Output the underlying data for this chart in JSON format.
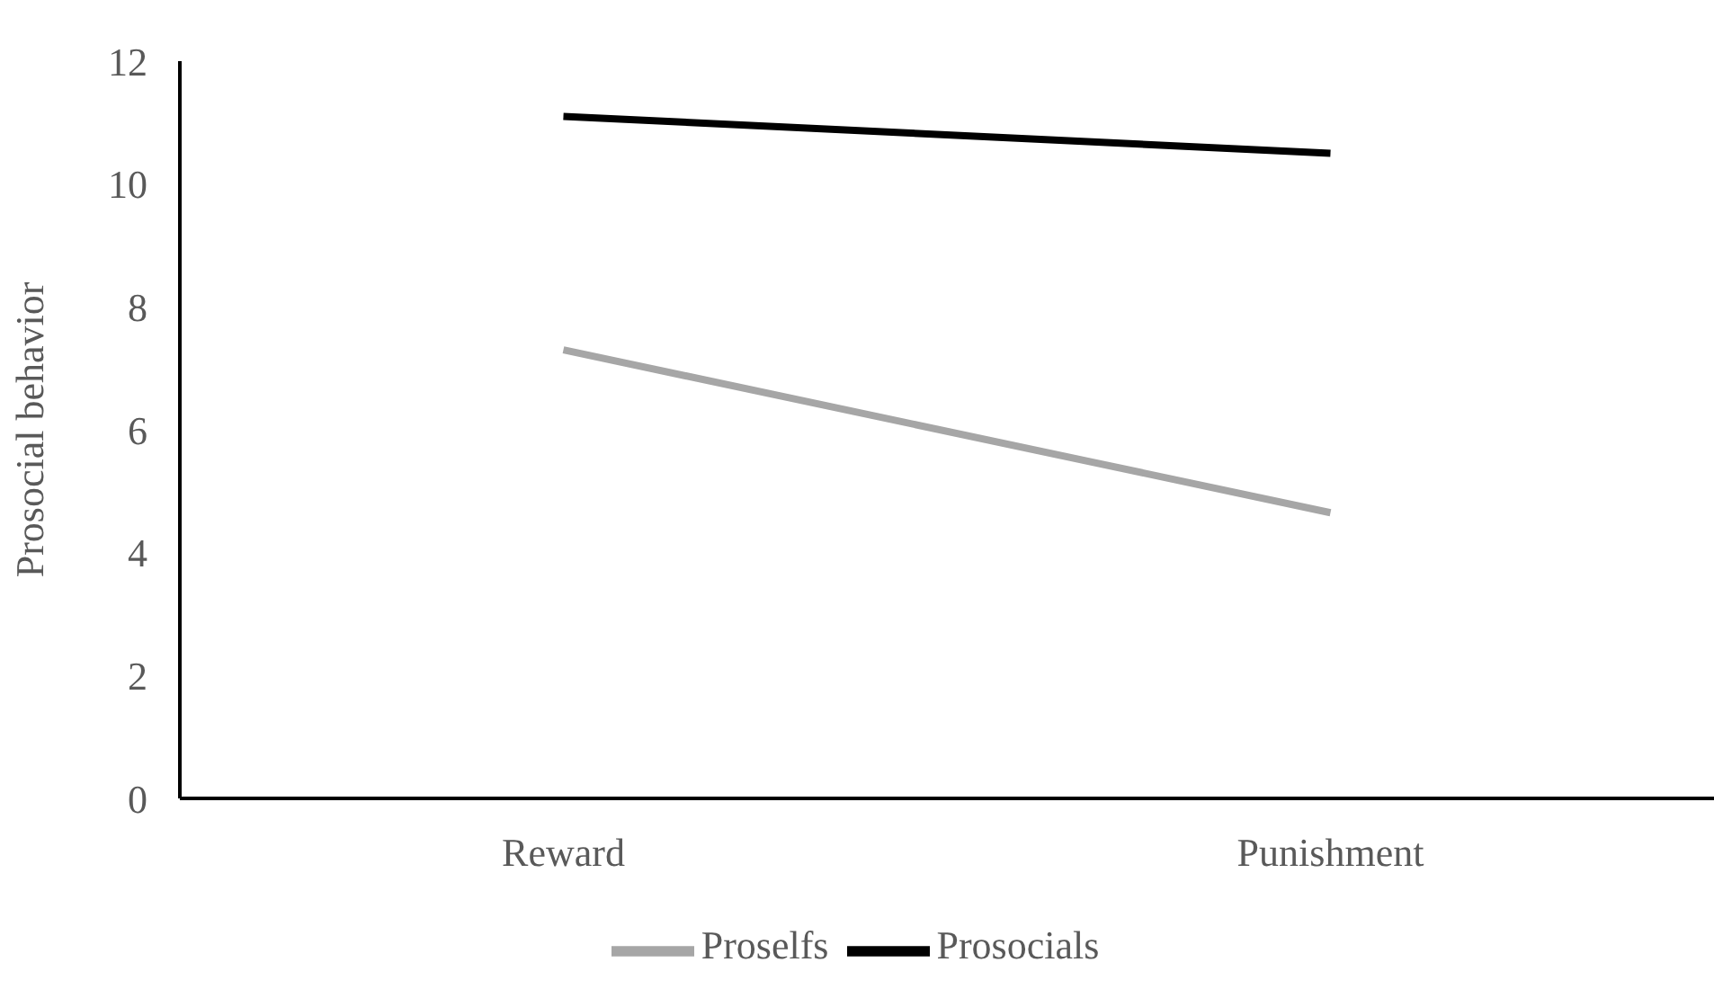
{
  "chart_data": {
    "type": "line",
    "ylabel": "Prosocial behavior",
    "categories": [
      "Reward",
      "Punishment"
    ],
    "series": [
      {
        "name": "Prosocials",
        "color": "#000000",
        "values": [
          11.1,
          10.5
        ]
      },
      {
        "name": "Proselfs",
        "color": "#a6a6a6",
        "values": [
          7.3,
          4.65
        ]
      }
    ],
    "ylim": [
      0,
      12
    ],
    "yticks": [
      0,
      2,
      4,
      6,
      8,
      10,
      12
    ],
    "grid": false,
    "legend": "bottom",
    "marker": "none",
    "line_style": "solid"
  }
}
